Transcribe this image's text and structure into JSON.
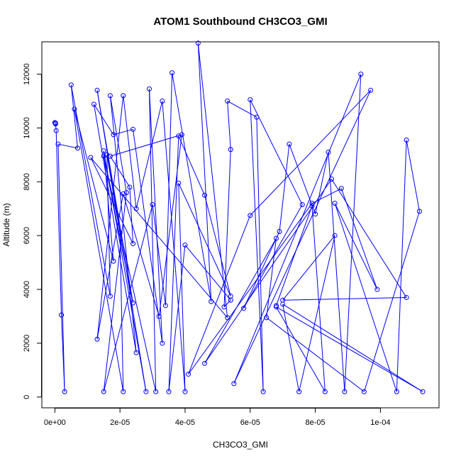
{
  "chart_data": {
    "type": "line",
    "title": "ATOM1 Southbound CH3CO3_GMI",
    "xlabel": "CH3CO3_GMI",
    "ylabel": "Altitude (m)",
    "xlim": [
      -4e-06,
      0.000118
    ],
    "ylim": [
      -400,
      13200
    ],
    "xticks": [
      0,
      2e-05,
      4e-05,
      6e-05,
      8e-05,
      0.0001
    ],
    "xtick_labels": [
      "0e+00",
      "2e-05",
      "4e-05",
      "6e-05",
      "8e-05",
      "1e-04"
    ],
    "yticks": [
      0,
      2000,
      4000,
      6000,
      8000,
      10000,
      12000
    ],
    "ytick_labels": [
      "0",
      "2000",
      "4000",
      "6000",
      "8000",
      "10000",
      "12000"
    ],
    "line_color": "#0000ff",
    "marker": "open-circle",
    "grid": false,
    "series": [
      {
        "points": [
          [
            0.0,
            10200
          ],
          [
            2e-07,
            10180
          ],
          [
            2e-07,
            10150
          ],
          [
            4e-07,
            9900
          ],
          [
            2e-06,
            3050
          ],
          [
            3e-06,
            200
          ],
          [
            1e-06,
            9400
          ],
          [
            7e-06,
            9250
          ],
          [
            5e-06,
            11600
          ],
          [
            1.7e-05,
            3750
          ],
          [
            1.6e-05,
            9000
          ],
          [
            2e-05,
            6100
          ],
          [
            2.1e-05,
            200
          ],
          [
            6e-06,
            10700
          ],
          [
            1.8e-05,
            5050
          ],
          [
            1.5e-05,
            9150
          ],
          [
            2.8e-05,
            200
          ],
          [
            1.3e-05,
            11400
          ],
          [
            2.4e-05,
            3500
          ],
          [
            1.5e-05,
            8950
          ],
          [
            3.1e-05,
            200
          ],
          [
            2.9e-05,
            11450
          ],
          [
            3.3e-05,
            2000
          ],
          [
            2.4e-05,
            9950
          ],
          [
            1.8e-05,
            9750
          ],
          [
            1.2e-05,
            10880
          ],
          [
            2.5e-05,
            1650
          ],
          [
            1.7e-05,
            11200
          ],
          [
            2.2e-05,
            7600
          ],
          [
            1.5e-05,
            200
          ],
          [
            3e-05,
            7150
          ],
          [
            3.4e-05,
            3400
          ],
          [
            3.6e-05,
            12050
          ],
          [
            4.8e-05,
            3550
          ],
          [
            4.4e-05,
            13150
          ],
          [
            5.3e-05,
            2950
          ],
          [
            1.1e-05,
            8900
          ],
          [
            2.4e-05,
            5700
          ],
          [
            2.3e-05,
            7800
          ],
          [
            1.7e-05,
            8950
          ],
          [
            3.9e-05,
            9750
          ],
          [
            3.2e-05,
            3000
          ],
          [
            2.1e-05,
            7550
          ],
          [
            1.3e-05,
            2150
          ],
          [
            2.1e-05,
            11200
          ],
          [
            2.5e-05,
            7000
          ],
          [
            3.3e-05,
            11000
          ],
          [
            4e-05,
            200
          ],
          [
            3.8e-05,
            7950
          ],
          [
            5.4e-05,
            3750
          ],
          [
            4.6e-05,
            7500
          ],
          [
            3.8e-05,
            9700
          ],
          [
            3.5e-05,
            200
          ],
          [
            4e-05,
            5650
          ],
          [
            5.4e-05,
            3600
          ],
          [
            5.2e-05,
            3350
          ],
          [
            5.4e-05,
            9200
          ],
          [
            5.3e-05,
            11000
          ],
          [
            6.2e-05,
            10400
          ],
          [
            6.4e-05,
            200
          ],
          [
            6e-05,
            11050
          ],
          [
            7.6e-05,
            7150
          ],
          [
            5.8e-05,
            3300
          ],
          [
            6.9e-05,
            6150
          ],
          [
            7.2e-05,
            9400
          ],
          [
            8e-05,
            6800
          ],
          [
            8.4e-05,
            9100
          ],
          [
            8.9e-05,
            200
          ],
          [
            9.4e-05,
            12000
          ],
          [
            5.5e-05,
            500
          ],
          [
            9.7e-05,
            11400
          ],
          [
            6e-05,
            6750
          ],
          [
            4.1e-05,
            850
          ],
          [
            7.9e-05,
            7200
          ],
          [
            8.8e-05,
            7750
          ],
          [
            9.9e-05,
            4000
          ],
          [
            8.6e-05,
            7200
          ],
          [
            0.000105,
            200
          ],
          [
            0.000108,
            9550
          ],
          [
            0.000112,
            6900
          ],
          [
            9.5e-05,
            200
          ],
          [
            6.5e-05,
            2950
          ],
          [
            6.8e-05,
            5900
          ],
          [
            4.6e-05,
            1250
          ],
          [
            8.5e-05,
            8100
          ],
          [
            0.000108,
            3700
          ],
          [
            7e-05,
            3600
          ],
          [
            8.6e-05,
            6000
          ],
          [
            7.5e-05,
            200
          ],
          [
            7e-05,
            3450
          ],
          [
            0.000113,
            200
          ],
          [
            6.8e-05,
            3350
          ],
          [
            8.3e-05,
            200
          ],
          [
            7.9e-05,
            7100
          ],
          [
            6.8e-05,
            3400
          ]
        ]
      }
    ]
  }
}
